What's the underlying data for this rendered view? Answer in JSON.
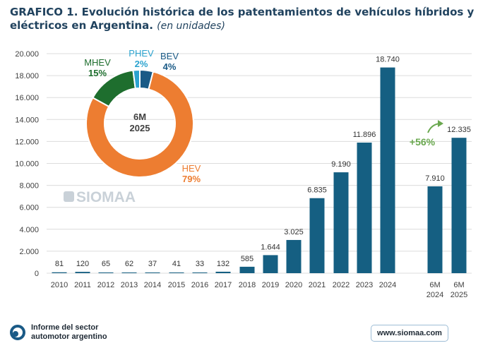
{
  "header": {
    "title": "GRAFICO 1. Evolución histórica de los patentamientos de vehículos híbridos y eléctricos en Argentina.",
    "subtitle": "(en unidades)"
  },
  "chart_data": [
    {
      "type": "bar",
      "categories": [
        "2010",
        "2011",
        "2012",
        "2013",
        "2014",
        "2015",
        "2016",
        "2017",
        "2018",
        "2019",
        "2020",
        "2021",
        "2022",
        "2023",
        "2024",
        "6M 2024",
        "6M 2025"
      ],
      "values": [
        81,
        120,
        65,
        62,
        37,
        41,
        33,
        132,
        585,
        1644,
        3025,
        6835,
        9190,
        11896,
        18740,
        7910,
        12335
      ],
      "value_labels": [
        "81",
        "120",
        "65",
        "62",
        "37",
        "41",
        "33",
        "132",
        "585",
        "1.644",
        "3.025",
        "6.835",
        "9.190",
        "11.896",
        "18.740",
        "7.910",
        "12.335"
      ],
      "ylim": [
        0,
        20000
      ],
      "yticks": [
        0,
        2000,
        4000,
        6000,
        8000,
        10000,
        12000,
        14000,
        16000,
        18000,
        20000
      ],
      "ytick_labels": [
        "0",
        "2.000",
        "4.000",
        "6.000",
        "8.000",
        "10.000",
        "12.000",
        "14.000",
        "16.000",
        "18.000",
        "20.000"
      ],
      "grid": true,
      "bar_color": "#155f82",
      "annotation": {
        "text": "+56%",
        "color": "#6aa84f"
      }
    },
    {
      "type": "pie",
      "donut": true,
      "center_label": [
        "6M",
        "2025"
      ],
      "slices": [
        {
          "name": "BEV",
          "percent": 4,
          "label": "4%",
          "color": "#1a5a86"
        },
        {
          "name": "HEV",
          "percent": 79,
          "label": "79%",
          "color": "#ed7d31"
        },
        {
          "name": "MHEV",
          "percent": 15,
          "label": "15%",
          "color": "#1e6e2e"
        },
        {
          "name": "PHEV",
          "percent": 2,
          "label": "2%",
          "color": "#2ba3cf"
        }
      ]
    }
  ],
  "watermark": "SIOMAA",
  "footer": {
    "left_text_1": "Informe del sector",
    "left_text_2": "automotor argentino",
    "right_text": "www.siomaa.com"
  }
}
